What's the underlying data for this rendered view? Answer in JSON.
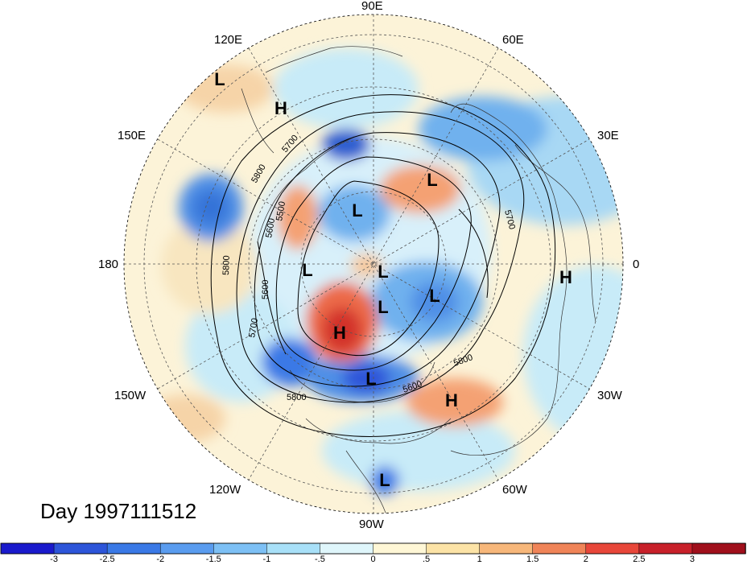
{
  "day_label": "Day 1997111512",
  "longitude_labels": {
    "lon_90e": "90E",
    "lon_60e": "60E",
    "lon_120e": "120E",
    "lon_150e": "150E",
    "lon_30e": "30E",
    "lon_180": "180",
    "lon_0": "0",
    "lon_150w": "150W",
    "lon_30w": "30W",
    "lon_120w": "120W",
    "lon_60w": "60W",
    "lon_90w": "90W"
  },
  "contour_labels": [
    "5700",
    "5800",
    "5500",
    "5600",
    "5800",
    "5600",
    "5700",
    "5800",
    "5800",
    "5600",
    "5700"
  ],
  "pressure_centers": [
    {
      "label": "L"
    },
    {
      "label": "H"
    },
    {
      "label": "L"
    },
    {
      "label": "L"
    },
    {
      "label": "L"
    },
    {
      "label": "L"
    },
    {
      "label": "L"
    },
    {
      "label": "H"
    },
    {
      "label": "L"
    },
    {
      "label": "L"
    },
    {
      "label": "H"
    },
    {
      "label": "H"
    },
    {
      "label": "L"
    }
  ],
  "colorbar": {
    "ticks": [
      "-3",
      "-2.5",
      "-2",
      "-1.5",
      "-1",
      "-.5",
      "0",
      ".5",
      "1",
      "1.5",
      "2",
      "2.5",
      "3"
    ],
    "colors": [
      "#1a1acc",
      "#2d55d9",
      "#3a79e6",
      "#5a9cef",
      "#7dc0f5",
      "#a8e0f8",
      "#dff6fb",
      "#fff7d6",
      "#fce3a6",
      "#f7b77a",
      "#f08458",
      "#e8473a",
      "#c8202a",
      "#a0101c"
    ]
  }
}
